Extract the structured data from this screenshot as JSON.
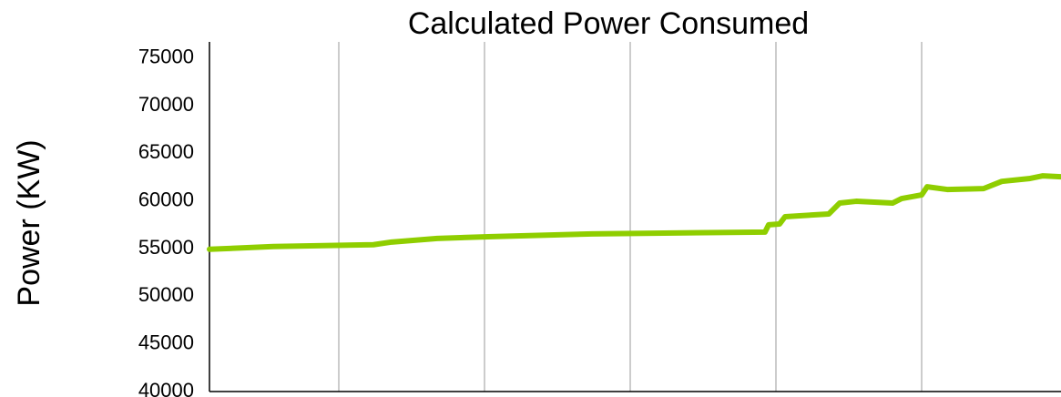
{
  "chart_data": {
    "type": "line",
    "title": "Calculated Power Consumed",
    "y_label": "Power (KW)",
    "x": [
      0,
      4.375,
      11.25,
      12.5,
      15.625,
      19.375,
      26.25,
      38.125,
      38.375,
      39.125,
      39.5,
      42.5,
      43.25,
      44.375,
      46.875,
      47.5,
      48.875,
      49.25,
      50.625,
      53.125,
      54.375,
      56.25,
      57.1875,
      58.4375
    ],
    "series": [
      {
        "name": "Power",
        "color": "#8fce00",
        "values": [
          54930,
          55220,
          55410,
          55690,
          56070,
          56260,
          56550,
          56740,
          57500,
          57590,
          58350,
          58640,
          59780,
          59970,
          59780,
          60260,
          60640,
          61490,
          61210,
          61300,
          62060,
          62350,
          62640,
          62540
        ]
      }
    ],
    "xlim": [
      0,
      58.4375
    ],
    "xticks": [
      8.875,
      18.875,
      28.875,
      38.875,
      48.875
    ],
    "ylim": [
      40000,
      76700
    ],
    "yticks": [
      40000,
      45000,
      50000,
      55000,
      60000,
      65000,
      70000,
      75000
    ],
    "xgrid": true
  }
}
